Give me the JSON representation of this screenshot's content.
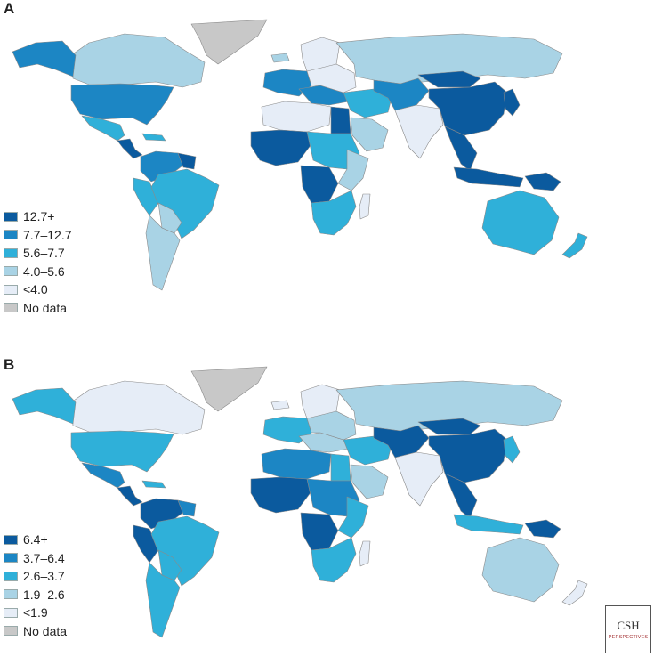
{
  "panels": [
    {
      "label": "A",
      "legend": [
        {
          "label": "12.7+",
          "color": "#0b5a9e"
        },
        {
          "label": "7.7–12.7",
          "color": "#1c86c4"
        },
        {
          "label": "5.6–7.7",
          "color": "#2fb0d9"
        },
        {
          "label": "4.0–5.6",
          "color": "#a9d3e5"
        },
        {
          "label": "<4.0",
          "color": "#e6edf7"
        },
        {
          "label": "No data",
          "color": "#c8c8c8"
        }
      ],
      "regions": {
        "greenland": "No data",
        "canada": "4.0–5.6",
        "alaska": "7.7–12.7",
        "usa": "7.7–12.7",
        "mexico": "5.6–7.7",
        "central_america": "12.7+",
        "caribbean": "5.6–7.7",
        "colombia_venezuela": "7.7–12.7",
        "guianas": "12.7+",
        "peru": "5.6–7.7",
        "brazil": "5.6–7.7",
        "bolivia_paraguay": "4.0–5.6",
        "southern_cone": "4.0–5.6",
        "iceland": "4.0–5.6",
        "northern_europe": "<4.0",
        "western_europe": "7.7–12.7",
        "southern_europe": "7.7–12.7",
        "eastern_europe": "<4.0",
        "russia": "4.0–5.6",
        "north_africa": "<4.0",
        "egypt": "12.7+",
        "west_africa": "12.7+",
        "central_africa": "5.6–7.7",
        "congo": "12.7+",
        "east_africa": "4.0–5.6",
        "southern_africa": "5.6–7.7",
        "madagascar": "<4.0",
        "middle_east": "5.6–7.7",
        "arabia": "4.0–5.6",
        "central_asia": "7.7–12.7",
        "south_asia": "<4.0",
        "china": "12.7+",
        "mongolia": "12.7+",
        "southeast_asia": "12.7+",
        "japan_korea": "12.7+",
        "indonesia": "12.7+",
        "papua": "12.7+",
        "australia": "5.6–7.7",
        "new_zealand": "5.6–7.7"
      }
    },
    {
      "label": "B",
      "legend": [
        {
          "label": "6.4+",
          "color": "#0b5a9e"
        },
        {
          "label": "3.7–6.4",
          "color": "#1c86c4"
        },
        {
          "label": "2.6–3.7",
          "color": "#2fb0d9"
        },
        {
          "label": "1.9–2.6",
          "color": "#a9d3e5"
        },
        {
          "label": "<1.9",
          "color": "#e6edf7"
        },
        {
          "label": "No data",
          "color": "#c8c8c8"
        }
      ],
      "regions": {
        "greenland": "No data",
        "canada": "<1.9",
        "alaska": "2.6–3.7",
        "usa": "2.6–3.7",
        "mexico": "3.7–6.4",
        "central_america": "6.4+",
        "caribbean": "2.6–3.7",
        "colombia_venezuela": "6.4+",
        "guianas": "3.7–6.4",
        "peru": "6.4+",
        "brazil": "2.6–3.7",
        "bolivia_paraguay": "2.6–3.7",
        "southern_cone": "2.6–3.7",
        "iceland": "<1.9",
        "northern_europe": "<1.9",
        "western_europe": "2.6–3.7",
        "southern_europe": "1.9–2.6",
        "eastern_europe": "1.9–2.6",
        "russia": "1.9–2.6",
        "north_africa": "3.7–6.4",
        "egypt": "2.6–3.7",
        "west_africa": "6.4+",
        "central_africa": "3.7–6.4",
        "congo": "6.4+",
        "east_africa": "2.6–3.7",
        "southern_africa": "2.6–3.7",
        "madagascar": "<1.9",
        "middle_east": "2.6–3.7",
        "arabia": "1.9–2.6",
        "central_asia": "6.4+",
        "south_asia": "<1.9",
        "china": "6.4+",
        "mongolia": "6.4+",
        "southeast_asia": "6.4+",
        "japan_korea": "2.6–3.7",
        "indonesia": "2.6–3.7",
        "papua": "6.4+",
        "australia": "1.9–2.6",
        "new_zealand": "<1.9"
      }
    }
  ],
  "logo": {
    "main": "CSH",
    "sub": "PERSPECTIVES"
  }
}
